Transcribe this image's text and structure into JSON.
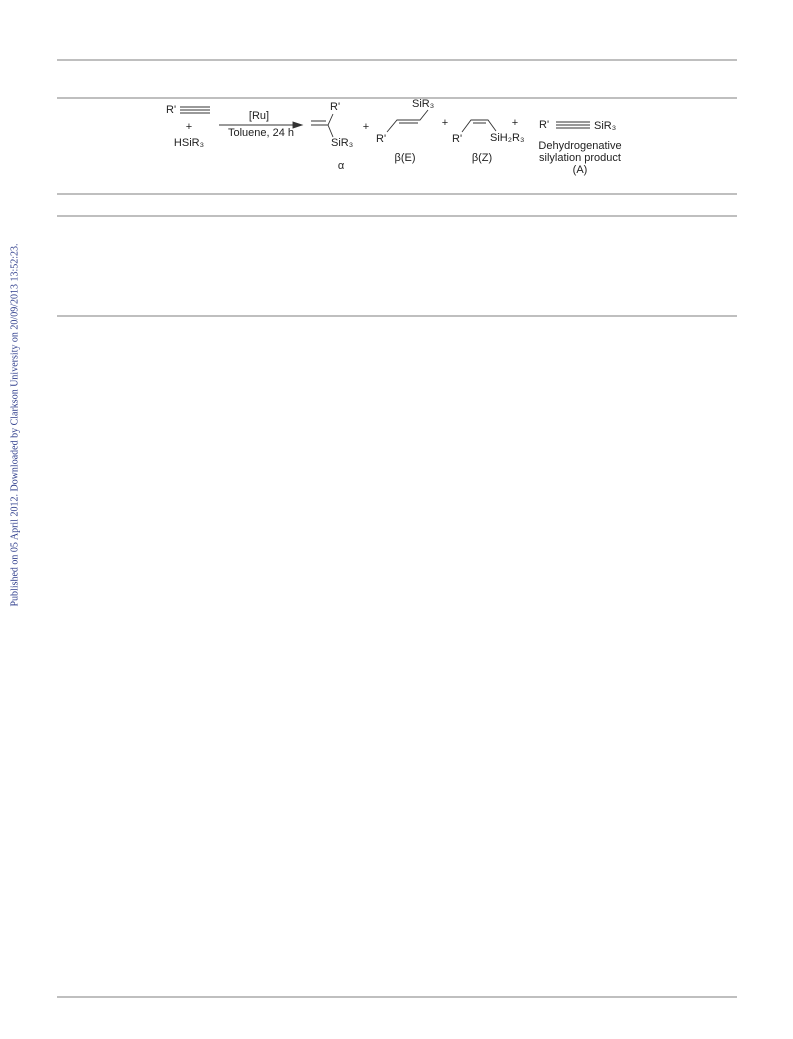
{
  "side_note": "Published on 05 April 2012. Downloaded by Clarkson University on 20/09/2013 13:52:23.",
  "scheme": {
    "reactants": {
      "alkyne": "R'",
      "plus": "+",
      "silane": "HSiR₃"
    },
    "conditions": {
      "catalyst": "[Ru]",
      "solvent": "Toluene, 24 h"
    },
    "plus_signs": [
      "+",
      "+",
      "+"
    ],
    "products": [
      {
        "label": "α",
        "substituents": [
          "R'",
          "SiR₃"
        ]
      },
      {
        "label": "β(E)",
        "substituents": [
          "SiR₃",
          "R'"
        ]
      },
      {
        "label": "β(Z)",
        "substituents": [
          "R'",
          "SiH₂R₃"
        ]
      },
      {
        "label": "(A)",
        "substituents": [
          "R'",
          "SiR₃"
        ],
        "name_lines": [
          "Dehydrogenative",
          "silylation product"
        ]
      }
    ]
  }
}
